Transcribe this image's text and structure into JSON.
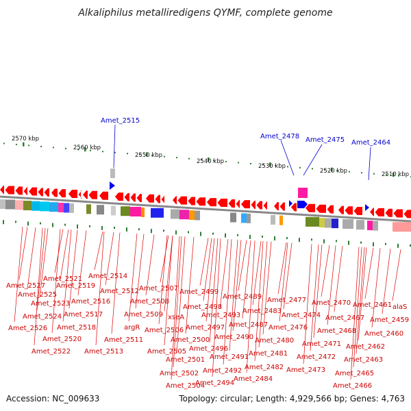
{
  "title": "Alkaliphilus metalliredigens QYMF, complete genome",
  "footer": {
    "accession": "Accession: NC_009633",
    "summary": "Topology: circular; Length: 4,929,566 bp; Genes: 4,763"
  },
  "kbp_labels": [
    "2570 kbp",
    "2560 kbp",
    "2550 kbp",
    "2540 kbp",
    "2530 kbp",
    "2520 kbp",
    "2510 kbp"
  ],
  "forward_genes": [
    "Amet_2515",
    "Amet_2478",
    "Amet_2475",
    "Amet_2464"
  ],
  "reverse_genes": [
    "Amet_2527",
    "Amet_2526",
    "Amet_2525",
    "Amet_2524",
    "Amet_2523",
    "Amet_2522",
    "Amet_2521",
    "Amet_2520",
    "Amet_2519",
    "Amet_2518",
    "Amet_2517",
    "Amet_2516",
    "Amet_2514",
    "Amet_2513",
    "Amet_2512",
    "Amet_2511",
    "argR",
    "Amet_2509",
    "Amet_2508",
    "Amet_2507",
    "Amet_2506",
    "xseA",
    "Amet_2505",
    "Amet_2504",
    "Amet_2502",
    "Amet_2501",
    "Amet_2500",
    "Amet_2499",
    "Amet_2498",
    "Amet_2497",
    "Amet_2496",
    "Amet_2494",
    "Amet_2493",
    "Amet_2492",
    "Amet_2491",
    "Amet_2490",
    "Amet_2489",
    "Amet_2487",
    "Amet_2484",
    "Amet_2483",
    "Amet_2482",
    "Amet_2481",
    "Amet_2480",
    "Amet_2477",
    "Amet_2476",
    "Amet_2474",
    "Amet_2473",
    "Amet_2472",
    "Amet_2471",
    "Amet_2470",
    "Amet_2468",
    "Amet_2467",
    "Amet_2466",
    "Amet_2465",
    "Amet_2463",
    "Amet_2462",
    "Amet_2461",
    "Amet_2460",
    "alaS",
    "Amet_2459"
  ],
  "colors": {
    "forward": "#0000ee",
    "reverse": "#ff0000",
    "backbone": "#888888",
    "tick": "#2e7d32"
  }
}
